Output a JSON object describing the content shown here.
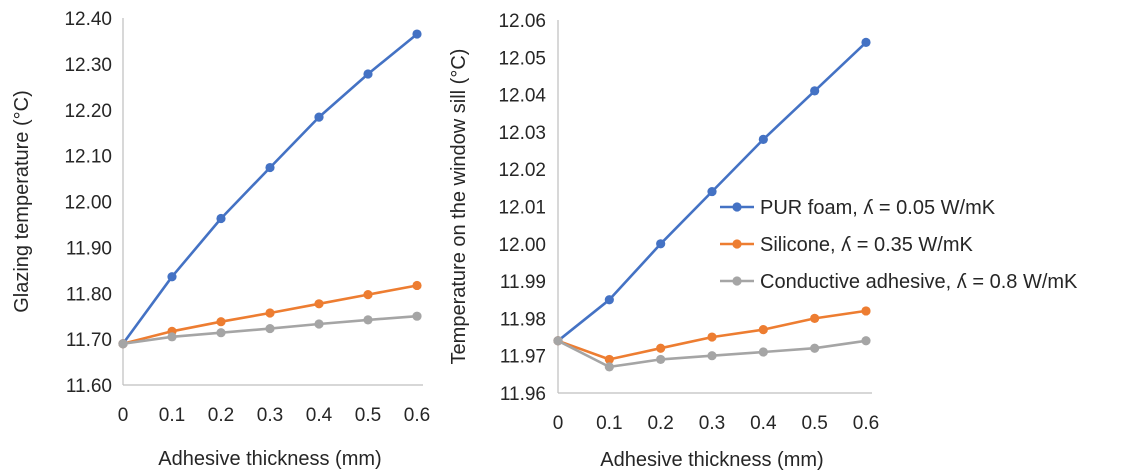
{
  "chart_data": [
    {
      "type": "line",
      "title": "",
      "xlabel": "Adhesive thickness (mm)",
      "ylabel": "Glazing temperature (°C)",
      "x": [
        0,
        0.1,
        0.2,
        0.3,
        0.4,
        0.5,
        0.6
      ],
      "x_tick_labels": [
        "0",
        "0.1",
        "0.2",
        "0.3",
        "0.4",
        "0.5",
        "0.6"
      ],
      "xlim": [
        0,
        0.6
      ],
      "ylim": [
        11.6,
        12.4
      ],
      "y_tick_labels": [
        "11.60",
        "11.70",
        "11.80",
        "11.90",
        "12.00",
        "12.10",
        "12.20",
        "12.30",
        "12.40"
      ],
      "grid": false,
      "series": [
        {
          "name": "PUR foam, ʎ = 0.05 W/mK",
          "color": "#4472c4",
          "values": [
            11.69,
            11.836,
            11.963,
            12.074,
            12.184,
            12.278,
            12.365
          ]
        },
        {
          "name": "Silicone, ʎ = 0.35 W/mK",
          "color": "#ed7d31",
          "values": [
            11.69,
            11.717,
            11.738,
            11.757,
            11.777,
            11.797,
            11.817
          ]
        },
        {
          "name": "Conductive adhesive, ʎ = 0.8 W/mK",
          "color": "#a5a5a5",
          "values": [
            11.69,
            11.705,
            11.714,
            11.723,
            11.733,
            11.742,
            11.75
          ]
        }
      ]
    },
    {
      "type": "line",
      "title": "",
      "xlabel": "Adhesive thickness (mm)",
      "ylabel": "Temperature on the window sill (°C)",
      "x": [
        0,
        0.1,
        0.2,
        0.3,
        0.4,
        0.5,
        0.6
      ],
      "x_tick_labels": [
        "0",
        "0.1",
        "0.2",
        "0.3",
        "0.4",
        "0.5",
        "0.6"
      ],
      "xlim": [
        0,
        0.6
      ],
      "ylim": [
        11.96,
        12.06
      ],
      "y_tick_labels": [
        "11.96",
        "11.97",
        "11.98",
        "11.99",
        "12.00",
        "12.01",
        "12.02",
        "12.03",
        "12.04",
        "12.05",
        "12.06"
      ],
      "grid": false,
      "legend": "right",
      "series": [
        {
          "name": "PUR foam, ʎ = 0.05 W/mK",
          "color": "#4472c4",
          "values": [
            11.974,
            11.985,
            12.0,
            12.014,
            12.028,
            12.041,
            12.054
          ]
        },
        {
          "name": "Silicone, ʎ = 0.35 W/mK",
          "color": "#ed7d31",
          "values": [
            11.974,
            11.969,
            11.972,
            11.975,
            11.977,
            11.98,
            11.982
          ]
        },
        {
          "name": "Conductive adhesive, ʎ = 0.8 W/mK",
          "color": "#a5a5a5",
          "values": [
            11.974,
            11.967,
            11.969,
            11.97,
            11.971,
            11.972,
            11.974
          ]
        }
      ]
    }
  ]
}
